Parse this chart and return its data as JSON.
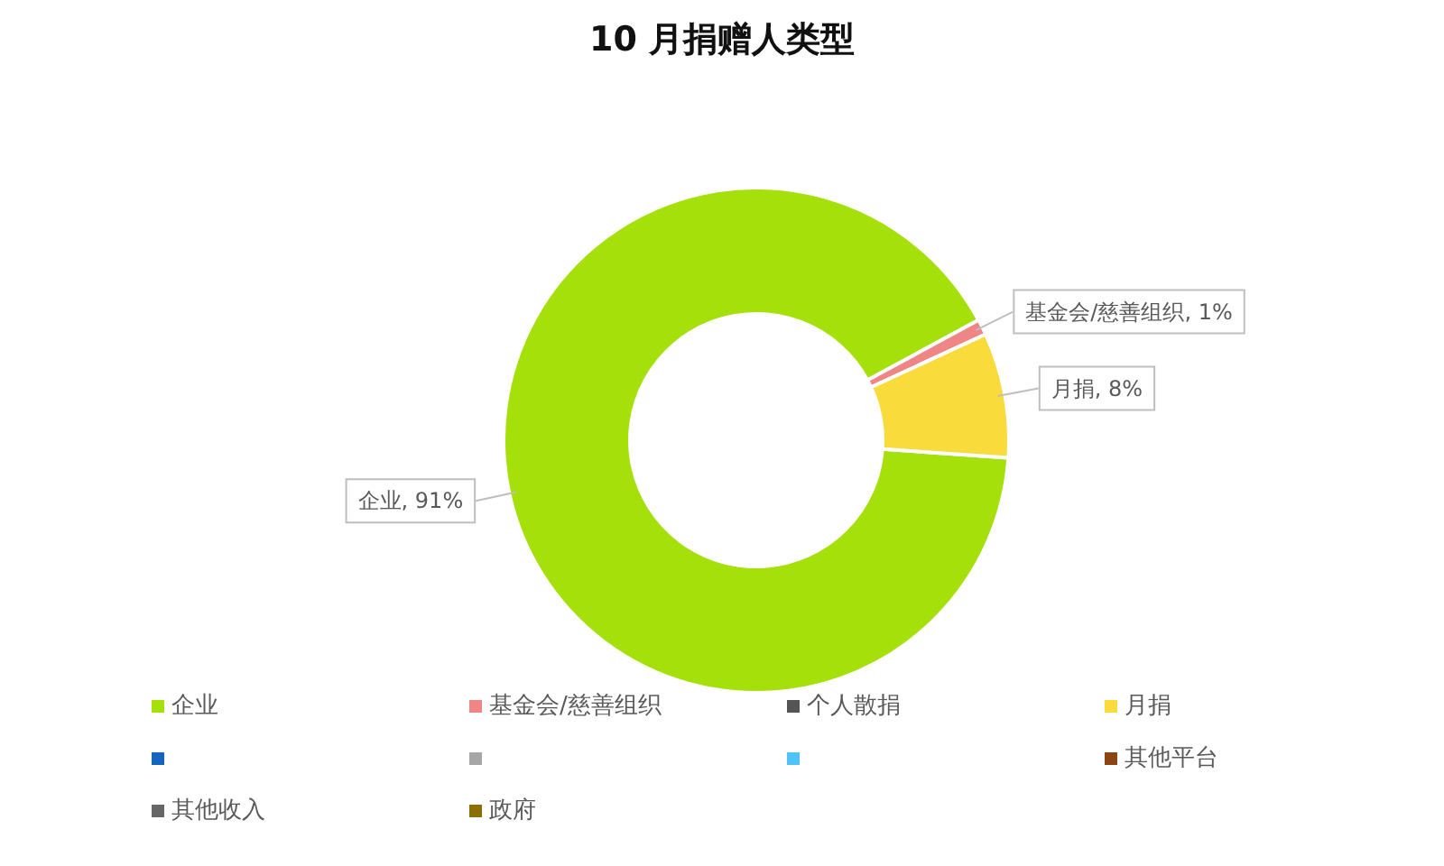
{
  "chart_data": {
    "type": "donut",
    "title": "10 月捐赠人类型",
    "categories": [
      "企业",
      "基金会/慈善组织",
      "个人散捐",
      "月捐",
      null,
      null,
      null,
      "其他平台",
      "其他收入",
      "政府"
    ],
    "values": [
      91,
      1,
      0,
      8,
      0,
      0,
      0,
      0,
      0,
      0
    ],
    "colors": [
      "#a5e00b",
      "#f08585",
      "#555555",
      "#f9dc3c",
      "#1565c0",
      "#a6a6a6",
      "#4fc3f7",
      "#8b4513",
      "#666666",
      "#8b6f00"
    ],
    "value_labels": [
      "企业, 91%",
      "基金会/慈善组织, 1%",
      null,
      "月捐, 8%",
      null,
      null,
      null,
      null,
      null,
      null
    ],
    "legend": "bottom"
  }
}
